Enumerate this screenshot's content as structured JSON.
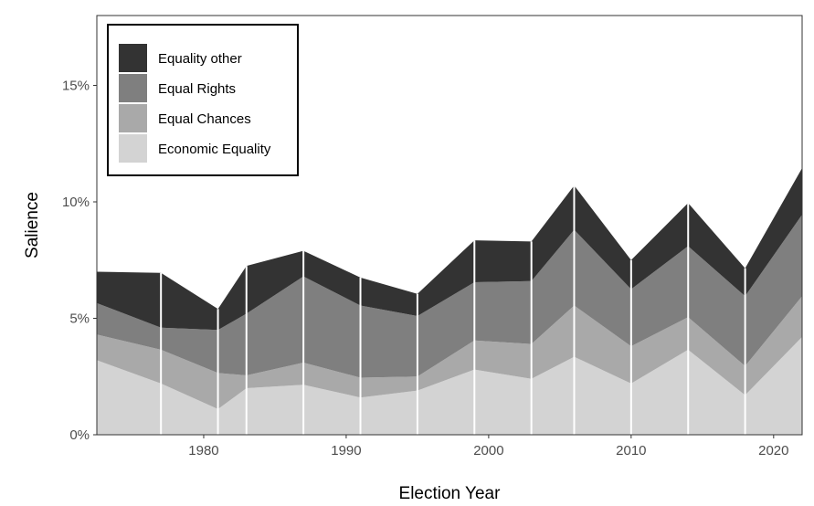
{
  "chart_data": {
    "type": "area",
    "stacked": true,
    "xlabel": "Election Year",
    "ylabel": "Salience",
    "xlim": [
      1972.5,
      2022
    ],
    "ylim": [
      0,
      18
    ],
    "x_ticks": [
      1980,
      1990,
      2000,
      2010,
      2020
    ],
    "x_tick_labels": [
      "1980",
      "1990",
      "2000",
      "2010",
      "2020"
    ],
    "y_ticks": [
      0,
      5,
      10,
      15
    ],
    "y_tick_labels": [
      "0%",
      "5%",
      "10%",
      "15%"
    ],
    "grid": false,
    "legend_position": "top-left",
    "election_years": [
      1977,
      1981,
      1983,
      1987,
      1991,
      1995,
      1999,
      2003,
      2006,
      2010,
      2014,
      2018
    ],
    "x": [
      1972.5,
      1977,
      1981,
      1983,
      1987,
      1991,
      1995,
      1999,
      2003,
      2006,
      2010,
      2014,
      2018,
      2022
    ],
    "series": [
      {
        "name": "Economic Equality",
        "color": "#d3d3d3",
        "values": [
          3.2,
          2.2,
          1.1,
          2.0,
          2.15,
          1.6,
          1.9,
          2.8,
          2.4,
          3.35,
          2.2,
          3.65,
          1.7,
          4.2
        ]
      },
      {
        "name": "Equal Chances",
        "color": "#a9a9a9",
        "values": [
          1.1,
          1.45,
          1.55,
          0.55,
          0.95,
          0.85,
          0.6,
          1.25,
          1.5,
          2.2,
          1.6,
          1.4,
          1.25,
          1.75
        ]
      },
      {
        "name": "Equal Rights",
        "color": "#7f7f7f",
        "values": [
          1.35,
          0.95,
          1.85,
          2.65,
          3.7,
          3.1,
          2.6,
          2.5,
          2.7,
          3.25,
          2.45,
          3.05,
          3.0,
          3.5
        ]
      },
      {
        "name": "Equality other",
        "color": "#333333",
        "values": [
          1.35,
          2.35,
          0.9,
          2.05,
          1.1,
          1.2,
          0.95,
          1.8,
          1.7,
          1.9,
          1.25,
          1.85,
          1.2,
          2.0
        ]
      }
    ],
    "legend_order": [
      "Equality other",
      "Equal Rights",
      "Equal Chances",
      "Economic Equality"
    ]
  }
}
